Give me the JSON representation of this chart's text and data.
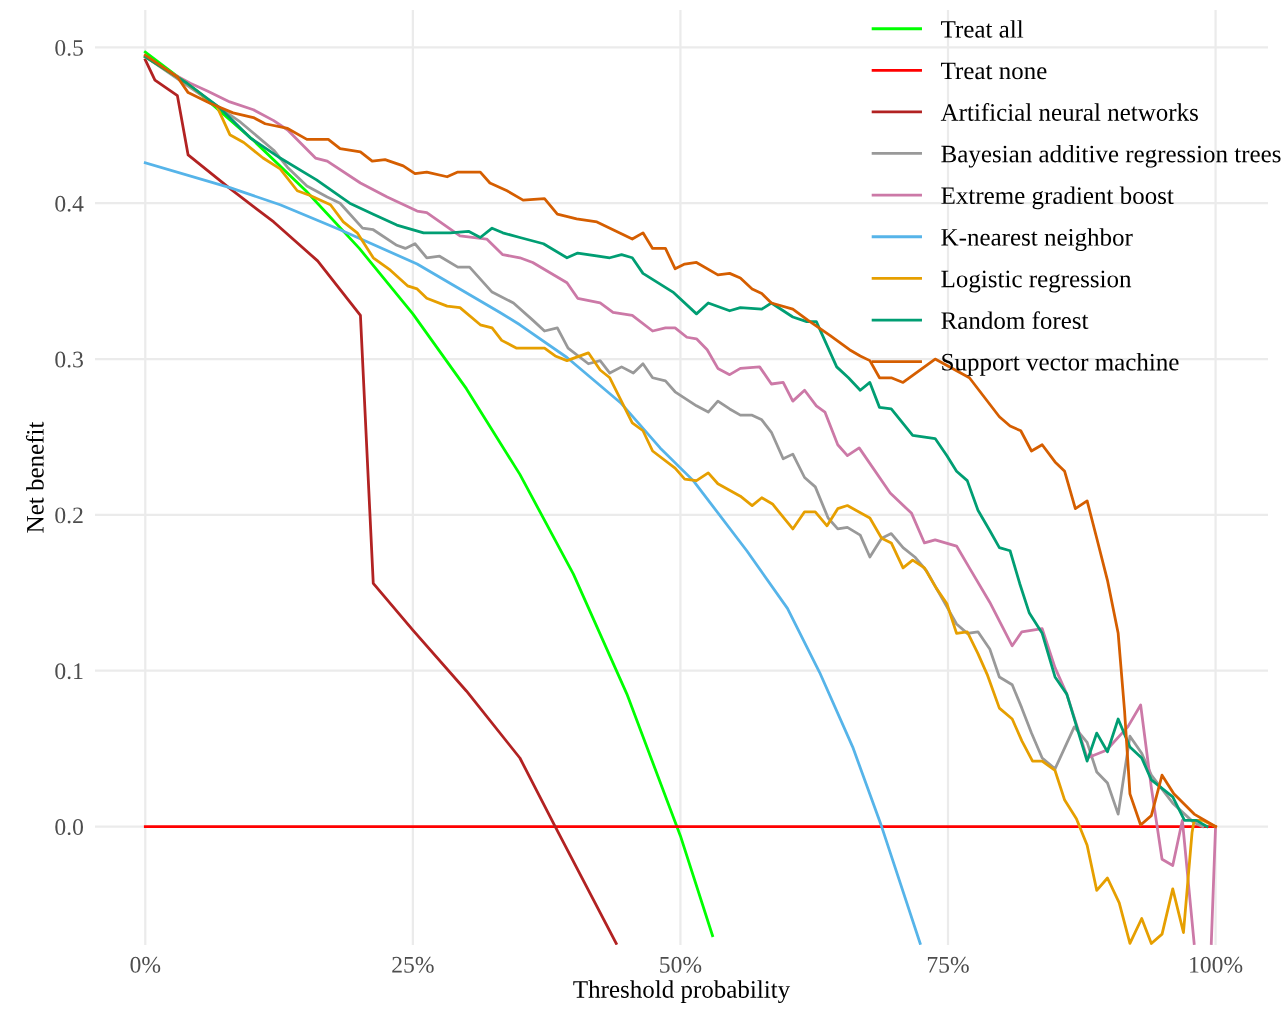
{
  "chart_data": {
    "type": "line",
    "xlabel": "Threshold probability",
    "ylabel": "Net benefit",
    "xlim": [
      -4.7,
      104.9
    ],
    "ylim": [
      -0.076,
      0.524
    ],
    "xticks": [
      {
        "value": 0,
        "label": "0%"
      },
      {
        "value": 25,
        "label": "25%"
      },
      {
        "value": 50,
        "label": "50%"
      },
      {
        "value": 75,
        "label": "75%"
      },
      {
        "value": 100,
        "label": "100%"
      }
    ],
    "yticks": [
      {
        "value": 0,
        "label": "0.0"
      },
      0.1,
      0.2,
      0.3,
      0.4,
      0.5
    ],
    "grid": true,
    "legend": "top right",
    "marker": "none",
    "line_style": "solid",
    "series": [
      {
        "name": "Treat all",
        "color": "#00ff00",
        "x": [
          0,
          5,
          10,
          15,
          20,
          25,
          30,
          35,
          40,
          45,
          50,
          53
        ],
        "values": [
          0.497,
          0.471,
          0.441,
          0.408,
          0.371,
          0.329,
          0.281,
          0.226,
          0.162,
          0.085,
          -0.006,
          -0.07
        ]
      },
      {
        "name": "Treat none",
        "color": "#ff0000",
        "x": [
          0,
          100
        ],
        "values": [
          0,
          0
        ]
      },
      {
        "name": "Artificial neural networks",
        "color": "#b22222",
        "x": [
          0,
          0.9,
          3,
          4,
          7.8,
          12,
          16.1,
          20.1,
          21.3,
          25,
          30,
          35,
          38.3,
          44
        ],
        "values": [
          0.492,
          0.479,
          0.469,
          0.431,
          0.41,
          0.388,
          0.363,
          0.328,
          0.156,
          0.126,
          0.087,
          0.044,
          0,
          -0.075
        ]
      },
      {
        "name": "Bayesian additive regression trees",
        "color": "#999999",
        "x": [
          0,
          8.9,
          12,
          13.3,
          15.1,
          17,
          18.2,
          20.3,
          21.3,
          23.5,
          24.3,
          25.2,
          26.3,
          27.5,
          29.2,
          30.3,
          32.4,
          34.4,
          36.2,
          37.3,
          38.5,
          39.5,
          41.4,
          42.5,
          43.4,
          44.5,
          45.6,
          46.5,
          47.4,
          48.6,
          49.5,
          51.5,
          52.6,
          53.5,
          54.6,
          55.6,
          56.7,
          57.6,
          58.5,
          59.6,
          60.5,
          61.6,
          62.6,
          63.8,
          64.7,
          65.6,
          66.8,
          67.7,
          68.8,
          69.7,
          70.8,
          71.9,
          73,
          74.9,
          75.8,
          76.8,
          77.8,
          78.9,
          79.8,
          81,
          81.9,
          82.8,
          83.8,
          85,
          86.8,
          88,
          88.9,
          89.9,
          90.9,
          92,
          93.1,
          94,
          96,
          97.9,
          98.8
        ],
        "values": [
          0.494,
          0.452,
          0.434,
          0.423,
          0.411,
          0.404,
          0.4,
          0.384,
          0.383,
          0.373,
          0.371,
          0.374,
          0.365,
          0.366,
          0.359,
          0.359,
          0.343,
          0.336,
          0.325,
          0.318,
          0.32,
          0.307,
          0.297,
          0.299,
          0.291,
          0.295,
          0.291,
          0.297,
          0.288,
          0.286,
          0.279,
          0.27,
          0.266,
          0.273,
          0.268,
          0.264,
          0.264,
          0.261,
          0.253,
          0.236,
          0.239,
          0.224,
          0.218,
          0.198,
          0.191,
          0.192,
          0.187,
          0.173,
          0.185,
          0.188,
          0.179,
          0.173,
          0.164,
          0.141,
          0.13,
          0.124,
          0.125,
          0.114,
          0.096,
          0.091,
          0.076,
          0.06,
          0.044,
          0.037,
          0.064,
          0.054,
          0.035,
          0.028,
          0.008,
          0.058,
          0.047,
          0.033,
          0.015,
          0.003,
          0
        ]
      },
      {
        "name": "Extreme gradient boost",
        "color": "#cc79a7",
        "x": [
          0,
          2.6,
          4.2,
          5.8,
          7.9,
          10.1,
          12,
          13.3,
          15.9,
          17,
          20.1,
          22.6,
          25.4,
          26.3,
          29.4,
          31.9,
          33.4,
          35,
          36.2,
          39.4,
          40.4,
          42.5,
          43.7,
          45.5,
          47.4,
          48.6,
          49.5,
          50.6,
          51.5,
          52.5,
          53.5,
          54.6,
          55.6,
          57.4,
          58.5,
          59.6,
          60.5,
          61.6,
          62.7,
          63.5,
          64.7,
          65.6,
          66.7,
          69.6,
          71.6,
          72.8,
          73.8,
          75.8,
          77,
          78.9,
          81,
          81.9,
          83.8,
          85,
          86.1,
          88,
          89.8,
          91.8,
          93,
          94,
          95,
          96,
          96.9,
          98,
          98.8,
          99.6,
          100
        ],
        "values": [
          0.494,
          0.483,
          0.477,
          0.472,
          0.465,
          0.46,
          0.453,
          0.447,
          0.429,
          0.427,
          0.413,
          0.404,
          0.395,
          0.394,
          0.379,
          0.377,
          0.367,
          0.365,
          0.362,
          0.349,
          0.339,
          0.336,
          0.33,
          0.328,
          0.318,
          0.32,
          0.32,
          0.314,
          0.313,
          0.306,
          0.294,
          0.29,
          0.294,
          0.295,
          0.284,
          0.285,
          0.273,
          0.28,
          0.27,
          0.266,
          0.245,
          0.238,
          0.243,
          0.214,
          0.201,
          0.182,
          0.184,
          0.18,
          0.166,
          0.144,
          0.116,
          0.125,
          0.127,
          0.102,
          0.085,
          0.044,
          0.049,
          0.064,
          0.078,
          0.025,
          -0.021,
          -0.025,
          0.004,
          -0.075,
          null,
          -0.075,
          0
        ]
      },
      {
        "name": "K-nearest neighbor",
        "color": "#56b4e9",
        "x": [
          0,
          7.9,
          12.6,
          18.2,
          25.4,
          33.1,
          35,
          39.4,
          44.4,
          48.1,
          51.2,
          56.2,
          60,
          63,
          66.1,
          68.8,
          72.4
        ],
        "values": [
          0.426,
          0.41,
          0.399,
          0.383,
          0.361,
          0.33,
          0.322,
          0.301,
          0.272,
          0.243,
          0.222,
          0.177,
          0.14,
          0.099,
          0.051,
          0,
          -0.075
        ]
      },
      {
        "name": "Logistic regression",
        "color": "#e69f00",
        "x": [
          0,
          3.9,
          6.7,
          7.9,
          9.2,
          11,
          12.6,
          14.2,
          15.4,
          17.3,
          18.5,
          19.8,
          21.3,
          22.9,
          24.5,
          25.4,
          26.3,
          28.2,
          29.4,
          31.3,
          32.4,
          33.3,
          34.7,
          36.2,
          37.3,
          38.3,
          39.4,
          41.4,
          42.5,
          43.4,
          45.5,
          46.5,
          47.4,
          49.5,
          50.4,
          51.5,
          52.6,
          53.5,
          55.6,
          56.7,
          57.6,
          58.6,
          60.5,
          61.6,
          62.6,
          63.7,
          64.7,
          65.6,
          67.7,
          68.8,
          69.7,
          70.8,
          71.7,
          72.8,
          73.9,
          74.9,
          75.8,
          76.8,
          77.8,
          78.7,
          79.8,
          81,
          81.9,
          82.9,
          83.8,
          85,
          85.9,
          87,
          88,
          88.9,
          89.9,
          91,
          92,
          93.1,
          94,
          95,
          96,
          97,
          97.8,
          98,
          98.8,
          100
        ],
        "values": [
          0.494,
          0.477,
          0.462,
          0.444,
          0.439,
          0.429,
          0.422,
          0.408,
          0.405,
          0.399,
          0.388,
          0.381,
          0.365,
          0.357,
          0.347,
          0.345,
          0.339,
          0.334,
          0.333,
          0.322,
          0.32,
          0.312,
          0.307,
          0.307,
          0.307,
          0.302,
          0.299,
          0.304,
          0.293,
          0.288,
          0.259,
          0.254,
          0.241,
          0.23,
          0.223,
          0.222,
          0.227,
          0.22,
          0.212,
          0.206,
          0.211,
          0.207,
          0.191,
          0.202,
          0.202,
          0.193,
          0.204,
          0.206,
          0.198,
          0.185,
          0.182,
          0.166,
          0.171,
          0.166,
          0.153,
          0.143,
          0.124,
          0.125,
          0.111,
          0.097,
          0.076,
          0.069,
          0.055,
          0.042,
          0.042,
          0.036,
          0.017,
          0.005,
          -0.012,
          -0.041,
          -0.033,
          -0.049,
          -0.075,
          -0.059,
          -0.075,
          -0.069,
          -0.04,
          -0.068,
          -0.004,
          0.004,
          0.004,
          0
        ]
      },
      {
        "name": "Random forest",
        "color": "#009e73",
        "x": [
          0,
          3.9,
          7,
          9.8,
          12.6,
          16,
          19.1,
          21.3,
          23.5,
          26,
          27.5,
          28.5,
          30.2,
          31.3,
          32.4,
          33.4,
          35,
          37.2,
          39.4,
          40.4,
          43.4,
          44.5,
          45.5,
          46.5,
          49.3,
          51.5,
          52.6,
          54.6,
          55.6,
          57.6,
          58.5,
          60.5,
          61.8,
          62.7,
          64.6,
          65.7,
          66.8,
          67.7,
          68.6,
          69.7,
          71.7,
          73.8,
          74.9,
          75.8,
          76.8,
          77.8,
          78.9,
          79.8,
          80.8,
          81.7,
          82.6,
          83.8,
          85,
          86.1,
          88,
          88.9,
          89.9,
          90.9,
          92,
          93.1,
          94,
          96,
          97.1,
          98.2,
          99.2
        ],
        "values": [
          0.494,
          0.477,
          0.461,
          0.442,
          0.429,
          0.415,
          0.4,
          0.393,
          0.386,
          0.381,
          0.381,
          0.381,
          0.382,
          0.378,
          0.384,
          0.381,
          0.378,
          0.374,
          0.365,
          0.368,
          0.365,
          0.367,
          0.365,
          0.355,
          0.343,
          0.329,
          0.336,
          0.331,
          0.333,
          0.332,
          0.336,
          0.327,
          0.324,
          0.324,
          0.295,
          0.288,
          0.28,
          0.285,
          0.269,
          0.268,
          0.251,
          0.249,
          0.238,
          0.228,
          0.222,
          0.203,
          0.19,
          0.179,
          0.177,
          0.156,
          0.137,
          0.124,
          0.096,
          0.085,
          0.042,
          0.06,
          0.048,
          0.069,
          0.051,
          0.044,
          0.03,
          0.019,
          0.004,
          0.004,
          0
        ]
      },
      {
        "name": "Support vector machine",
        "color": "#d55e00",
        "x": [
          0,
          3,
          4,
          6.1,
          8.2,
          10.1,
          11.2,
          13.3,
          15.1,
          17.1,
          18.2,
          20.1,
          21.2,
          22.4,
          24.1,
          25.2,
          26.3,
          28.2,
          29.2,
          31.3,
          32.2,
          33.8,
          35.3,
          37.3,
          38.5,
          40.3,
          42.2,
          45.5,
          46.5,
          47.4,
          48.6,
          49.5,
          50.4,
          51.5,
          53.5,
          54.6,
          55.6,
          56.7,
          57.6,
          58.5,
          60.5,
          61.9,
          64,
          65.8,
          66.8,
          67.7,
          68.6,
          69.7,
          70.8,
          73.8,
          77,
          79.8,
          80.8,
          81.8,
          82.8,
          83.8,
          85,
          85.9,
          86.9,
          88,
          88.9,
          89.9,
          90.9,
          91.5,
          92,
          93,
          94,
          95,
          96.1,
          98,
          100
        ],
        "values": [
          0.495,
          0.481,
          0.471,
          0.464,
          0.458,
          0.455,
          0.451,
          0.448,
          0.441,
          0.441,
          0.435,
          0.433,
          0.427,
          0.428,
          0.424,
          0.419,
          0.42,
          0.417,
          0.42,
          0.42,
          0.413,
          0.408,
          0.402,
          0.403,
          0.393,
          0.39,
          0.388,
          0.377,
          0.381,
          0.371,
          0.371,
          0.358,
          0.361,
          0.362,
          0.354,
          0.355,
          0.352,
          0.345,
          0.342,
          0.336,
          0.332,
          0.325,
          0.315,
          0.306,
          0.302,
          0.299,
          0.288,
          0.288,
          0.285,
          0.3,
          0.288,
          0.263,
          0.257,
          0.254,
          0.241,
          0.245,
          0.234,
          0.228,
          0.204,
          0.209,
          0.185,
          0.158,
          0.124,
          0.074,
          0.021,
          0.001,
          0.007,
          0.033,
          0.021,
          0.008,
          0
        ]
      }
    ]
  }
}
